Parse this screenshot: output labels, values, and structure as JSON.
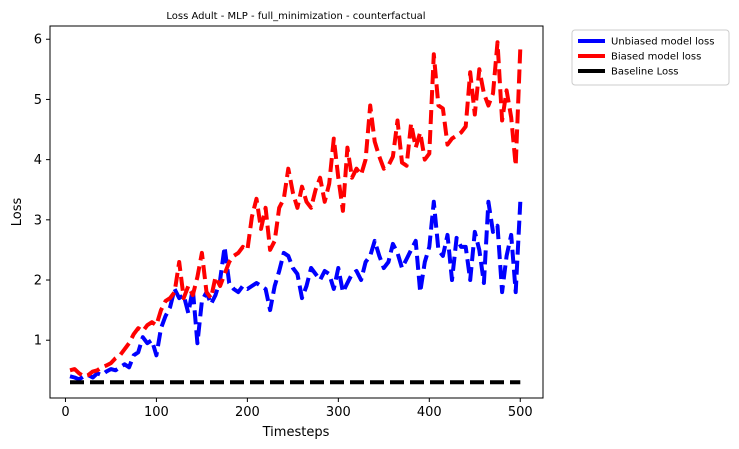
{
  "chart_data": {
    "type": "line",
    "title": "Loss Adult - MLP - full_minimization - counterfactual",
    "xlabel": "Timesteps",
    "ylabel": "Loss",
    "xlim": [
      -17,
      525
    ],
    "ylim": [
      0.04,
      6.22
    ],
    "xticks": [
      0,
      100,
      200,
      300,
      400,
      500
    ],
    "yticks": [
      1,
      2,
      3,
      4,
      5,
      6
    ],
    "grid": false,
    "legend_position": "outside-top-right",
    "x": [
      5,
      10,
      15,
      20,
      25,
      30,
      35,
      40,
      45,
      50,
      55,
      60,
      65,
      70,
      75,
      80,
      85,
      90,
      95,
      100,
      105,
      110,
      115,
      120,
      125,
      130,
      135,
      140,
      145,
      150,
      155,
      160,
      165,
      170,
      175,
      180,
      185,
      190,
      195,
      200,
      205,
      210,
      215,
      220,
      225,
      230,
      235,
      240,
      245,
      250,
      255,
      260,
      265,
      270,
      275,
      280,
      285,
      290,
      295,
      300,
      305,
      310,
      315,
      320,
      325,
      330,
      335,
      340,
      345,
      350,
      355,
      360,
      365,
      370,
      375,
      380,
      385,
      390,
      395,
      400,
      405,
      410,
      415,
      420,
      425,
      430,
      435,
      440,
      445,
      450,
      455,
      460,
      465,
      470,
      475,
      480,
      485,
      490,
      495,
      500
    ],
    "series": [
      {
        "name": "Unbiased model loss",
        "color": "#0000ff",
        "values": [
          0.4,
          0.38,
          0.35,
          0.4,
          0.42,
          0.38,
          0.45,
          0.42,
          0.48,
          0.52,
          0.5,
          0.55,
          0.6,
          0.55,
          0.75,
          0.8,
          1.05,
          0.95,
          1.0,
          0.75,
          1.2,
          1.4,
          1.55,
          1.85,
          1.7,
          1.75,
          1.45,
          1.85,
          0.95,
          1.65,
          1.8,
          1.6,
          1.75,
          2.0,
          2.55,
          1.95,
          1.85,
          1.8,
          1.9,
          1.85,
          1.9,
          1.95,
          1.9,
          1.85,
          1.5,
          1.9,
          2.15,
          2.45,
          2.4,
          2.2,
          2.1,
          1.7,
          1.9,
          2.2,
          2.1,
          2.0,
          2.15,
          2.1,
          1.85,
          2.2,
          1.8,
          1.95,
          2.1,
          2.15,
          2.0,
          2.3,
          2.4,
          2.65,
          2.4,
          2.2,
          2.3,
          2.6,
          2.45,
          2.2,
          2.35,
          2.5,
          2.65,
          1.8,
          2.3,
          2.55,
          3.3,
          2.5,
          2.4,
          2.75,
          2.0,
          2.7,
          2.55,
          2.55,
          2.0,
          2.8,
          2.5,
          1.95,
          3.3,
          2.8,
          2.9,
          1.8,
          2.4,
          2.75,
          1.8,
          3.3
        ]
      },
      {
        "name": "Biased model loss",
        "color": "#ff0000",
        "values": [
          0.5,
          0.52,
          0.45,
          0.4,
          0.42,
          0.48,
          0.5,
          0.55,
          0.58,
          0.62,
          0.7,
          0.75,
          0.85,
          0.95,
          1.1,
          1.2,
          1.15,
          1.25,
          1.3,
          1.25,
          1.5,
          1.65,
          1.7,
          1.8,
          2.3,
          1.7,
          1.9,
          1.75,
          2.05,
          2.45,
          1.8,
          1.7,
          2.05,
          1.9,
          2.1,
          2.3,
          2.4,
          2.45,
          2.55,
          2.5,
          3.05,
          3.35,
          2.85,
          3.2,
          2.5,
          2.65,
          3.2,
          3.35,
          3.85,
          3.45,
          3.2,
          3.55,
          3.3,
          3.2,
          3.5,
          3.7,
          3.3,
          3.6,
          4.35,
          3.7,
          3.15,
          4.2,
          3.7,
          3.85,
          3.75,
          4.0,
          4.9,
          4.3,
          4.05,
          3.85,
          3.9,
          4.05,
          4.65,
          3.95,
          3.9,
          4.6,
          4.2,
          4.45,
          4.0,
          4.1,
          5.75,
          4.9,
          4.85,
          4.25,
          4.35,
          4.4,
          4.45,
          4.55,
          5.45,
          4.75,
          5.5,
          5.1,
          4.9,
          5.1,
          5.95,
          4.65,
          5.15,
          4.7,
          3.9,
          5.85
        ]
      },
      {
        "name": "Baseline Loss",
        "color": "#000000",
        "values": [
          0.3,
          0.3,
          0.3,
          0.3,
          0.3,
          0.3,
          0.3,
          0.3,
          0.3,
          0.3,
          0.3,
          0.3,
          0.3,
          0.3,
          0.3,
          0.3,
          0.3,
          0.3,
          0.3,
          0.3,
          0.3,
          0.3,
          0.3,
          0.3,
          0.3,
          0.3,
          0.3,
          0.3,
          0.3,
          0.3,
          0.3,
          0.3,
          0.3,
          0.3,
          0.3,
          0.3,
          0.3,
          0.3,
          0.3,
          0.3,
          0.3,
          0.3,
          0.3,
          0.3,
          0.3,
          0.3,
          0.3,
          0.3,
          0.3,
          0.3,
          0.3,
          0.3,
          0.3,
          0.3,
          0.3,
          0.3,
          0.3,
          0.3,
          0.3,
          0.3,
          0.3,
          0.3,
          0.3,
          0.3,
          0.3,
          0.3,
          0.3,
          0.3,
          0.3,
          0.3,
          0.3,
          0.3,
          0.3,
          0.3,
          0.3,
          0.3,
          0.3,
          0.3,
          0.3,
          0.3,
          0.3,
          0.3,
          0.3,
          0.3,
          0.3,
          0.3,
          0.3,
          0.3,
          0.3,
          0.3,
          0.3,
          0.3,
          0.3,
          0.3,
          0.3,
          0.3,
          0.3,
          0.3,
          0.3,
          0.3
        ]
      }
    ]
  }
}
